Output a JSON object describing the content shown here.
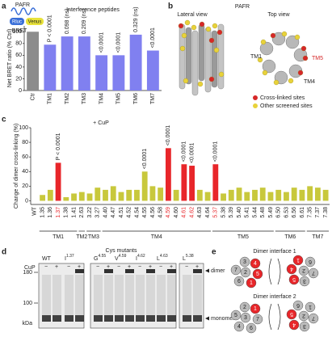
{
  "panel_labels": [
    "a",
    "b",
    "c",
    "d",
    "e"
  ],
  "chart_data": [
    {
      "type": "bar",
      "title": "Interference peptides",
      "ylabel": "Net BRET ratio (% Ctrl)",
      "categories": [
        "Ctr",
        "TM1",
        "TM2",
        "TM3",
        "TM4",
        "TM5",
        "TM6",
        "TM7"
      ],
      "values": [
        100,
        78,
        92,
        92,
        60,
        60,
        95,
        68
      ],
      "colors": [
        "#8c8c8c",
        "#8080f0",
        "#8080f0",
        "#8080f0",
        "#8080f0",
        "#8080f0",
        "#8080f0",
        "#8080f0"
      ],
      "annotations": [
        null,
        "P < 0.0001",
        "0.098 (ns)",
        "0.209 (ns)",
        "<0.0001",
        "<0.0001",
        "0.329 (ns)",
        "<0.0001"
      ],
      "ylim": [
        0,
        110
      ],
      "yticks": [
        0,
        20,
        40,
        60,
        80,
        100
      ]
    },
    {
      "type": "bar",
      "title": "+ CuP",
      "ylabel": "Change of dimer cross-linking (%)",
      "categories": [
        "WT",
        "1.35",
        "1.36",
        "1.37",
        "1.38",
        "1.41",
        "2.63",
        "3.22",
        "3.27",
        "4.40",
        "4.47",
        "4.51",
        "4.52",
        "4.54",
        "4.55",
        "4.56",
        "4.58",
        "4.59",
        "4.60",
        "4.61",
        "4.62",
        "4.63",
        "4.64",
        "5.37",
        "5.38",
        "5.39",
        "5.40",
        "5.41",
        "5.44",
        "5.48",
        "5.49",
        "6.50",
        "6.53",
        "6.56",
        "6.61",
        "7.35",
        "7.37",
        "7.38"
      ],
      "values": [
        0,
        8,
        15,
        52,
        5,
        10,
        12,
        10,
        18,
        15,
        20,
        12,
        15,
        15,
        40,
        20,
        18,
        72,
        15,
        50,
        48,
        15,
        12,
        50,
        10,
        15,
        18,
        12,
        15,
        18,
        12,
        15,
        12,
        18,
        15,
        20,
        18,
        15
      ],
      "colors": [
        "#c8c83c",
        "#c8c83c",
        "#c8c83c",
        "#e8262a",
        "#c8c83c",
        "#c8c83c",
        "#c8c83c",
        "#c8c83c",
        "#c8c83c",
        "#c8c83c",
        "#c8c83c",
        "#c8c83c",
        "#c8c83c",
        "#c8c83c",
        "#c8c83c",
        "#c8c83c",
        "#c8c83c",
        "#e8262a",
        "#c8c83c",
        "#e8262a",
        "#e8262a",
        "#c8c83c",
        "#c8c83c",
        "#e8262a",
        "#c8c83c",
        "#c8c83c",
        "#c8c83c",
        "#c8c83c",
        "#c8c83c",
        "#c8c83c",
        "#c8c83c",
        "#c8c83c",
        "#c8c83c",
        "#c8c83c",
        "#c8c83c",
        "#c8c83c",
        "#c8c83c",
        "#c8c83c"
      ],
      "label_colors": [
        "#222",
        "#222",
        "#222",
        "#e8262a",
        "#222",
        "#222",
        "#222",
        "#222",
        "#222",
        "#222",
        "#222",
        "#222",
        "#222",
        "#222",
        "#222",
        "#222",
        "#222",
        "#e8262a",
        "#222",
        "#e8262a",
        "#e8262a",
        "#222",
        "#222",
        "#e8262a",
        "#222",
        "#222",
        "#222",
        "#222",
        "#222",
        "#222",
        "#222",
        "#222",
        "#222",
        "#222",
        "#222",
        "#222",
        "#222",
        "#222"
      ],
      "annotations": [
        null,
        null,
        null,
        "P < 0.0001",
        null,
        null,
        null,
        null,
        null,
        null,
        null,
        null,
        null,
        null,
        "<0.0001",
        null,
        null,
        "<0.0001",
        null,
        "<0.0001",
        "<0.0001",
        null,
        null,
        "<0.0001",
        null,
        null,
        null,
        null,
        null,
        null,
        null,
        null,
        null,
        null,
        null,
        null,
        null,
        null
      ],
      "groups": [
        {
          "label": "TM1",
          "first": "1.35",
          "last": "1.41"
        },
        {
          "label": "TM2",
          "first": "2.63",
          "last": "2.63"
        },
        {
          "label": "TM3",
          "first": "3.22",
          "last": "3.27"
        },
        {
          "label": "TM4",
          "first": "4.40",
          "last": "4.64"
        },
        {
          "label": "TM5",
          "first": "5.37",
          "last": "5.49"
        },
        {
          "label": "TM6",
          "first": "6.50",
          "last": "6.61"
        },
        {
          "label": "TM7",
          "first": "7.35",
          "last": "7.38"
        }
      ],
      "ylim": [
        -5,
        100
      ],
      "yticks": [
        0,
        20,
        40,
        60,
        80,
        100
      ]
    }
  ],
  "panel_a_schematic": {
    "receptor": "PAFR",
    "donor": "Rluc",
    "acceptor": "Venus",
    "signal": "BRET"
  },
  "panel_b": {
    "title": "PAFR",
    "left_view": "Lateral view",
    "right_view": "Top view",
    "helix_labels": [
      "TM1",
      "TM5",
      "TM4"
    ],
    "legend": [
      {
        "name": "Cross-linked sites",
        "color": "#d62728"
      },
      {
        "name": "Other screened sites",
        "color": "#e8d23a"
      }
    ]
  },
  "panel_d": {
    "title": "Cys mutants",
    "treatment": "CuP",
    "minus": "−",
    "plus": "+",
    "mutants": [
      {
        "residue": "WT",
        "position": ""
      },
      {
        "residue": "I",
        "position": "1.37"
      },
      {
        "residue": "G",
        "position": "4.55"
      },
      {
        "residue": "V",
        "position": "4.59"
      },
      {
        "residue": "I",
        "position": "4.62"
      },
      {
        "residue": "L",
        "position": "4.63"
      },
      {
        "residue": "L",
        "position": "5.38"
      }
    ],
    "markers": [
      "180",
      "100"
    ],
    "unit": "kDa",
    "bands": [
      "dimer",
      "monomer"
    ]
  },
  "panel_e": {
    "interfaces": [
      {
        "title": "Dimer interface 1",
        "left": [
          {
            "label": "4",
            "color": "#e8262a"
          },
          {
            "label": "3",
            "color": "#bbb"
          },
          {
            "label": "5",
            "color": "#e8262a"
          },
          {
            "label": "2",
            "color": "#bbb"
          },
          {
            "label": "1",
            "color": "#e8262a"
          },
          {
            "label": "6",
            "color": "#bbb"
          },
          {
            "label": "7",
            "color": "#bbb"
          }
        ],
        "right": [
          {
            "label": "5",
            "color": "#e8262a"
          },
          {
            "label": "3",
            "color": "#bbb"
          },
          {
            "label": "4",
            "color": "#e8262a"
          },
          {
            "label": "2",
            "color": "#bbb"
          },
          {
            "label": "1",
            "color": "#e8262a"
          },
          {
            "label": "6",
            "color": "#bbb"
          },
          {
            "label": "7",
            "color": "#bbb"
          }
        ]
      },
      {
        "title": "Dimer interface 2",
        "left": [
          {
            "label": "1",
            "color": "#e8262a"
          },
          {
            "label": "2",
            "color": "#bbb"
          },
          {
            "label": "7",
            "color": "#bbb"
          },
          {
            "label": "3",
            "color": "#bbb"
          },
          {
            "label": "6",
            "color": "#bbb"
          },
          {
            "label": "4",
            "color": "#bbb"
          },
          {
            "label": "5",
            "color": "#bbb"
          }
        ],
        "right": [
          {
            "label": "4",
            "color": "#e8262a"
          },
          {
            "label": "3",
            "color": "#bbb"
          },
          {
            "label": "5",
            "color": "#e8262a"
          },
          {
            "label": "2",
            "color": "#bbb"
          },
          {
            "label": "6",
            "color": "#bbb"
          },
          {
            "label": "1",
            "color": "#bbb"
          },
          {
            "label": "7",
            "color": "#bbb"
          }
        ]
      }
    ]
  }
}
